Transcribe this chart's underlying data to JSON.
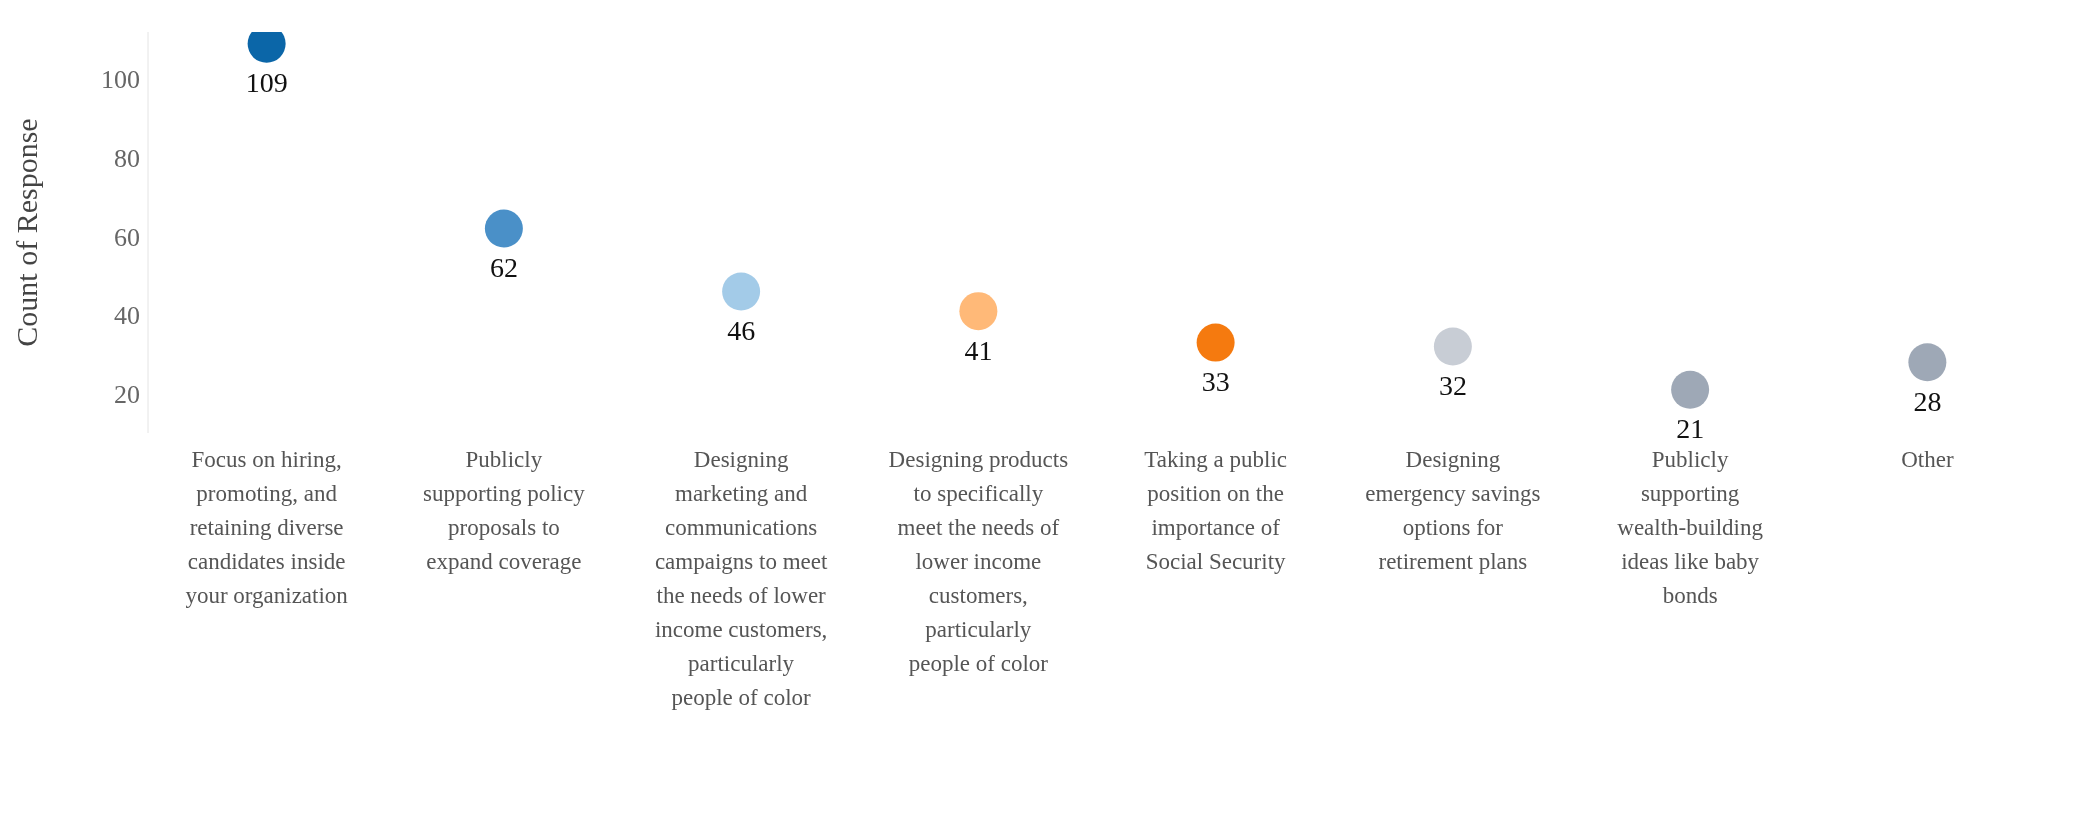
{
  "chart_data": {
    "type": "scatter",
    "ylabel": "Count of Response",
    "categories": [
      "Focus on hiring, promoting, and retaining diverse candidates inside your organization",
      "Publicly supporting policy proposals to expand coverage",
      "Designing marketing and communications campaigns to meet the needs of lower income customers, particularly people of color",
      "Designing products to specifically meet the needs of lower income customers, particularly people of color",
      "Taking a public position on the importance of Social Security",
      "Designing emergency savings options for retirement plans",
      "Publicly supporting wealth-building ideas like baby bonds",
      "Other"
    ],
    "values": [
      109,
      62,
      46,
      41,
      33,
      32,
      21,
      28
    ],
    "colors": [
      "#0b66a8",
      "#4a90c8",
      "#a3cbe8",
      "#ffb978",
      "#f57a0f",
      "#c8cdd5",
      "#9ea8b6",
      "#9ea8b6"
    ],
    "ylim": [
      10,
      112
    ],
    "yticks": [
      20,
      40,
      60,
      80,
      100
    ],
    "marker": "circle",
    "data_labels": true
  }
}
